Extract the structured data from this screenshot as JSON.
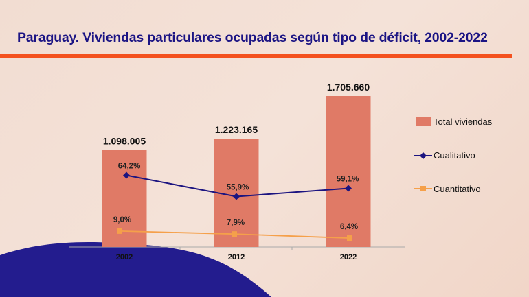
{
  "title": "Paraguay. Viviendas particulares ocupadas según tipo de déficit, 2002-2022",
  "colors": {
    "title": "#1b1484",
    "rule": "#f4511e",
    "bars": "#e07a66",
    "cualitativo": "#1c1480",
    "cuantitativo": "#f5a04a",
    "wave": "#231c8e"
  },
  "chart_data": {
    "type": "bar+line",
    "title": "Paraguay. Viviendas particulares ocupadas según tipo de déficit, 2002-2022",
    "categories": [
      "2002",
      "2012",
      "2022"
    ],
    "legend_position": "right",
    "grid": false,
    "series": [
      {
        "name": "Total viviendas",
        "type": "bar",
        "values": [
          1098005,
          1223165,
          1705660
        ],
        "labels": [
          "1.098.005",
          "1.223.165",
          "1.705.660"
        ]
      },
      {
        "name": "Cualitativo",
        "type": "line",
        "marker": "diamond",
        "values": [
          64.2,
          55.9,
          59.1
        ],
        "labels": [
          "64,2%",
          "55,9%",
          "59,1%"
        ]
      },
      {
        "name": "Cuantitativo",
        "type": "line",
        "marker": "square",
        "values": [
          9.0,
          7.9,
          6.4
        ],
        "labels": [
          "9,0%",
          "7,9%",
          "6,4%"
        ]
      }
    ]
  }
}
